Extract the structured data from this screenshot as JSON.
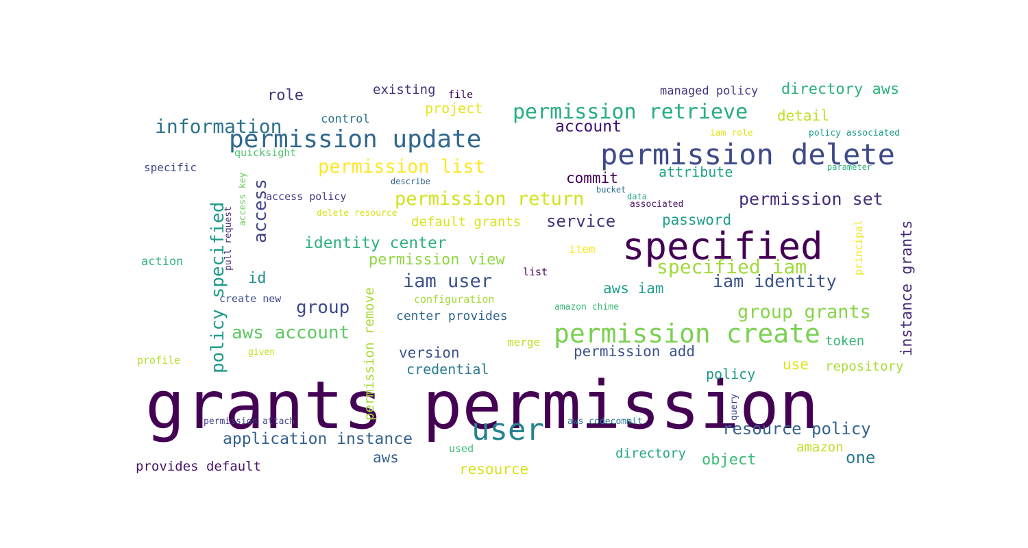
{
  "wordcloud": {
    "words": [
      {
        "text": "grants permission",
        "color": "#440154"
      },
      {
        "text": "permission delete",
        "color": "#3e4989"
      },
      {
        "text": "specified",
        "color": "#440154"
      },
      {
        "text": "permission update",
        "color": "#30678d"
      },
      {
        "text": "permission create",
        "color": "#7ad151"
      },
      {
        "text": "user",
        "color": "#25838e"
      },
      {
        "text": "permission retrieve",
        "color": "#27ad81"
      },
      {
        "text": "information",
        "color": "#2c728e"
      },
      {
        "text": "permission list",
        "color": "#fde725"
      },
      {
        "text": "permission return",
        "color": "#d2e21b"
      },
      {
        "text": "specified iam",
        "color": "#a0da39"
      },
      {
        "text": "iam user",
        "color": "#3b528b"
      },
      {
        "text": "permission set",
        "color": "#472d7b"
      },
      {
        "text": "group grants",
        "color": "#86d549"
      },
      {
        "text": "aws account",
        "color": "#5ec962"
      },
      {
        "text": "iam identity",
        "color": "#3b528b"
      },
      {
        "text": "identity center",
        "color": "#2db27d"
      },
      {
        "text": "resource policy",
        "color": "#33638d"
      },
      {
        "text": "application instance",
        "color": "#35608d"
      },
      {
        "text": "account",
        "color": "#3b0f70"
      },
      {
        "text": "service",
        "color": "#46327e"
      },
      {
        "text": "directory aws",
        "color": "#2db27d"
      },
      {
        "text": "permission view",
        "color": "#8fd744"
      },
      {
        "text": "group",
        "color": "#3e4a89"
      },
      {
        "text": "role",
        "color": "#46327e"
      },
      {
        "text": "access",
        "color": "#414487"
      },
      {
        "text": "policy specified",
        "color": "#1f9a8a"
      },
      {
        "text": "instance grants",
        "color": "#472a7a"
      },
      {
        "text": "permission remove",
        "color": "#a5db36"
      },
      {
        "text": "id",
        "color": "#21918c"
      },
      {
        "text": "commit",
        "color": "#440154"
      },
      {
        "text": "attribute",
        "color": "#20a486"
      },
      {
        "text": "password",
        "color": "#1f9e89"
      },
      {
        "text": "default grants",
        "color": "#dae319"
      },
      {
        "text": "permission add",
        "color": "#3b528b"
      },
      {
        "text": "version",
        "color": "#3b528b"
      },
      {
        "text": "credential",
        "color": "#297b8e"
      },
      {
        "text": "aws iam",
        "color": "#1fa187"
      },
      {
        "text": "detail",
        "color": "#c2df23"
      },
      {
        "text": "existing",
        "color": "#46337f"
      },
      {
        "text": "project",
        "color": "#e5e419"
      },
      {
        "text": "one",
        "color": "#2a788e"
      },
      {
        "text": "aws",
        "color": "#355f8d"
      },
      {
        "text": "resource",
        "color": "#d8e219"
      },
      {
        "text": "object",
        "color": "#3bbb75"
      },
      {
        "text": "directory",
        "color": "#22a785"
      },
      {
        "text": "policy",
        "color": "#1f968b"
      },
      {
        "text": "use",
        "color": "#dde318"
      },
      {
        "text": "repository",
        "color": "#a8db34"
      },
      {
        "text": "token",
        "color": "#35b779"
      },
      {
        "text": "amazon",
        "color": "#c0df25"
      },
      {
        "text": "managed policy",
        "color": "#453781"
      },
      {
        "text": "center provides",
        "color": "#31668e"
      },
      {
        "text": "provides default",
        "color": "#471365"
      },
      {
        "text": "control",
        "color": "#2c728e"
      },
      {
        "text": "specific",
        "color": "#3f4788"
      },
      {
        "text": "action",
        "color": "#2eb37c"
      },
      {
        "text": "access policy",
        "color": "#443983"
      },
      {
        "text": "profile",
        "color": "#b5de2b"
      },
      {
        "text": "create new",
        "color": "#3e4c8a"
      },
      {
        "text": "configuration",
        "color": "#a2da37"
      },
      {
        "text": "merge",
        "color": "#bddf26"
      },
      {
        "text": "list",
        "color": "#440154"
      },
      {
        "text": "item",
        "color": "#fde725"
      },
      {
        "text": "quicksight",
        "color": "#4ac16d"
      },
      {
        "text": "file",
        "color": "#440154"
      },
      {
        "text": "iam role",
        "color": "#e2e418"
      },
      {
        "text": "policy associated",
        "color": "#1e9c89"
      },
      {
        "text": "parameter",
        "color": "#2eb37c"
      },
      {
        "text": "describe",
        "color": "#33638d"
      },
      {
        "text": "bucket",
        "color": "#2c728e"
      },
      {
        "text": "data",
        "color": "#21a585"
      },
      {
        "text": "associated",
        "color": "#471063"
      },
      {
        "text": "delete resource",
        "color": "#d5e21a"
      },
      {
        "text": "access key",
        "color": "#6ccd5a"
      },
      {
        "text": "pull request",
        "color": "#482878"
      },
      {
        "text": "principal",
        "color": "#f1e51d"
      },
      {
        "text": "amazon chime",
        "color": "#3aba76"
      },
      {
        "text": "given",
        "color": "#c5e021"
      },
      {
        "text": "used",
        "color": "#3dbc74"
      },
      {
        "text": "query",
        "color": "#424186"
      },
      {
        "text": "permission attach",
        "color": "#414487"
      },
      {
        "text": "aws codecommit",
        "color": "#2a768e"
      }
    ]
  }
}
